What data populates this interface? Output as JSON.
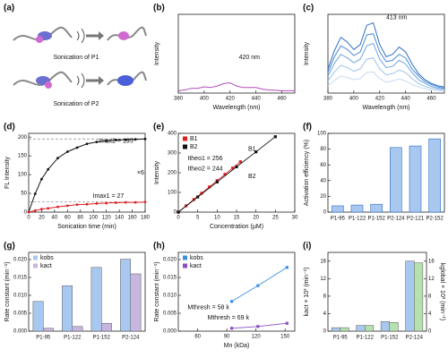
{
  "schematic": {
    "panel_label": "(a)",
    "captions": [
      "Sonication of P1",
      "Sonication of P2"
    ]
  },
  "chart_data": [
    {
      "type": "line",
      "panel_label": "(b)",
      "xlabel": "Wavelength (nm)",
      "ylabel": "Intensity",
      "x": [
        380,
        385,
        390,
        395,
        400,
        405,
        410,
        415,
        420,
        425,
        430,
        435,
        440,
        445,
        450,
        455,
        460,
        465,
        470
      ],
      "xlim": [
        380,
        470
      ],
      "xticks": [
        380,
        400,
        420,
        440,
        460
      ],
      "ylim": [
        0,
        10
      ],
      "series": [
        {
          "color": "#b04ab8",
          "values": [
            0.3,
            0.4,
            0.6,
            0.6,
            0.8,
            0.7,
            0.9,
            1.2,
            1.3,
            0.9,
            0.7,
            0.7,
            0.7,
            0.5,
            0.4,
            0.35,
            0.3,
            0.3,
            0.3
          ]
        }
      ],
      "annotations": [
        "420 nm"
      ]
    },
    {
      "type": "line",
      "panel_label": "(c)",
      "xlabel": "Wavelength (nm)",
      "ylabel": "Intensity",
      "x": [
        380,
        385,
        390,
        395,
        400,
        405,
        410,
        415,
        420,
        425,
        430,
        435,
        440,
        445,
        450,
        455,
        460,
        465,
        470
      ],
      "xlim": [
        380,
        470
      ],
      "xticks": [
        380,
        400,
        420,
        440,
        460
      ],
      "ylim": [
        0,
        6.5
      ],
      "series": [
        {
          "color": "#c7dcf3",
          "values": [
            0.6,
            1.05,
            1.4,
            1.3,
            1.1,
            1.2,
            1.7,
            1.75,
            1.2,
            0.9,
            1.0,
            1.15,
            1.0,
            0.7,
            0.5,
            0.35,
            0.25,
            0.2,
            0.15
          ]
        },
        {
          "color": "#9cc3ec",
          "values": [
            1.0,
            1.75,
            2.3,
            2.1,
            1.8,
            2.0,
            2.8,
            2.9,
            2.0,
            1.5,
            1.6,
            1.9,
            1.7,
            1.2,
            0.8,
            0.55,
            0.4,
            0.3,
            0.25
          ]
        },
        {
          "color": "#6fa6e2",
          "values": [
            1.4,
            2.45,
            3.2,
            2.9,
            2.5,
            2.8,
            3.9,
            4.1,
            2.8,
            2.1,
            2.2,
            2.7,
            2.4,
            1.7,
            1.1,
            0.8,
            0.55,
            0.4,
            0.35
          ]
        },
        {
          "color": "#4a8bd6",
          "values": [
            1.7,
            3.0,
            3.9,
            3.6,
            3.1,
            3.4,
            4.8,
            4.9,
            3.4,
            2.6,
            2.7,
            3.2,
            2.9,
            2.0,
            1.4,
            0.95,
            0.7,
            0.5,
            0.4
          ]
        },
        {
          "color": "#2f6fc2",
          "values": [
            2.0,
            3.5,
            4.6,
            4.2,
            3.6,
            4.0,
            5.6,
            5.8,
            4.0,
            3.0,
            3.2,
            3.8,
            3.4,
            2.4,
            1.6,
            1.1,
            0.8,
            0.6,
            0.5
          ]
        }
      ],
      "annotations": [
        "413 nm"
      ]
    },
    {
      "type": "line",
      "panel_label": "(d)",
      "xlabel": "Sonication time (min)",
      "ylabel": "FL Intensity",
      "x": [
        0,
        10,
        20,
        30,
        45,
        60,
        75,
        90,
        105,
        120,
        135,
        150,
        165,
        180
      ],
      "xlim": [
        0,
        180
      ],
      "xticks": [
        0,
        20,
        40,
        60,
        80,
        100,
        120,
        140,
        160,
        180
      ],
      "ylim": [
        0,
        210
      ],
      "yticks": [
        0,
        50,
        100,
        150,
        200
      ],
      "markers": true,
      "hlines": [
        195,
        27
      ],
      "series": [
        {
          "color": "#111111",
          "values": [
            0,
            49,
            88,
            114,
            144,
            161,
            172,
            182,
            187,
            190,
            192,
            193,
            194,
            195
          ]
        },
        {
          "color": "#e02020",
          "values": [
            0,
            4,
            8,
            10,
            14,
            17,
            20,
            21,
            23,
            24,
            25,
            26,
            26,
            27
          ]
        }
      ],
      "annotations": [
        "Imax2 = 195",
        "Imax1 = 27",
        "×6"
      ]
    },
    {
      "type": "scatter",
      "panel_label": "(e)",
      "xlabel": "Concentration (μM)",
      "ylabel": "Intensity",
      "xlim": [
        0,
        30
      ],
      "xticks": [
        0,
        5,
        10,
        15,
        20,
        25,
        30
      ],
      "ylim": [
        0,
        400
      ],
      "yticks": [
        0,
        100,
        200,
        300,
        400
      ],
      "legend": "upper left",
      "series": [
        {
          "name": "B1",
          "color": "#e02020",
          "x": [
            0,
            2,
            4,
            6,
            8,
            10,
            12,
            14,
            16
          ],
          "values": [
            0,
            32,
            64,
            96,
            128,
            160,
            192,
            224,
            256
          ]
        },
        {
          "name": "B2",
          "color": "#111111",
          "x": [
            0,
            5,
            10,
            15,
            20,
            25
          ],
          "values": [
            0,
            77,
            153,
            230,
            306,
            383
          ]
        }
      ],
      "annotations": [
        "Itheo1 = 256",
        "Itheo2 = 244",
        "B1",
        "B2"
      ]
    },
    {
      "type": "bar",
      "panel_label": "(f)",
      "ylabel": "Activation efficiency (%)",
      "categories": [
        "P1-95",
        "P1-122",
        "P1-152",
        "P2-124",
        "P2-121",
        "P2-152"
      ],
      "values": [
        8,
        9,
        10,
        82,
        84,
        93
      ],
      "color": "#a9c8ef",
      "ylim": [
        0,
        100
      ],
      "yticks": [
        0,
        20,
        40,
        60,
        80,
        100
      ]
    },
    {
      "type": "bar",
      "panel_label": "(g)",
      "ylabel": "Rate constant (min⁻¹)",
      "categories": [
        "P1-95",
        "P1-122",
        "P1-152",
        "P2-124"
      ],
      "ylim": [
        0,
        0.022
      ],
      "yticks": [
        {
          "value": 0,
          "label": "0.000"
        },
        {
          "value": 0.005,
          "label": "0.005"
        },
        {
          "value": 0.01,
          "label": "0.010"
        },
        {
          "value": 0.015,
          "label": "0.015"
        },
        {
          "value": 0.02,
          "label": "0.020"
        }
      ],
      "legend": "upper left",
      "series": [
        {
          "name": "kobs",
          "color": "#a9c8ef",
          "values": [
            0.0083,
            0.0127,
            0.0178,
            0.0201
          ]
        },
        {
          "name": "kact",
          "color": "#c9b6e0",
          "values": [
            0.0008,
            0.0013,
            0.0022,
            0.016
          ]
        }
      ]
    },
    {
      "type": "scatter",
      "panel_label": "(h)",
      "xlabel": "Mn (kDa)",
      "ylabel": "Rate constant (min⁻¹)",
      "xlim": [
        40,
        160
      ],
      "xticks": [
        60,
        90,
        120,
        150
      ],
      "ylim": [
        0,
        0.022
      ],
      "yticks": [
        {
          "value": 0,
          "label": "0.000"
        },
        {
          "value": 0.005,
          "label": "0.005"
        },
        {
          "value": 0.01,
          "label": "0.010"
        },
        {
          "value": 0.015,
          "label": "0.015"
        },
        {
          "value": 0.02,
          "label": "0.020"
        }
      ],
      "legend": "upper left",
      "series": [
        {
          "name": "kobs",
          "color": "#3d8fe0",
          "x": [
            95,
            122,
            152
          ],
          "values": [
            0.0083,
            0.0127,
            0.0178
          ]
        },
        {
          "name": "kact",
          "color": "#8a4fc0",
          "x": [
            95,
            122,
            152
          ],
          "values": [
            0.0008,
            0.0013,
            0.0022
          ]
        }
      ],
      "annotations": [
        "Mthresh = 58 k",
        "Mthresh = 69 k"
      ]
    },
    {
      "type": "bar",
      "panel_label": "(i)",
      "ylabel": "kact × 10³ (min⁻¹)",
      "y2label": "kglobal × 10³ (min⁻¹)",
      "categories": [
        "P1-95",
        "P1-122",
        "P1-152",
        "P2-124"
      ],
      "ylim": [
        0,
        18
      ],
      "yticks": [
        0,
        4,
        8,
        12,
        16
      ],
      "y2lim": [
        0,
        18
      ],
      "y2ticks": [
        0,
        4,
        8,
        12,
        16
      ],
      "series": [
        {
          "color": "#a9c8ef",
          "values": [
            0.8,
            1.3,
            2.2,
            16.0
          ]
        },
        {
          "color": "#b6e0b0",
          "axis": "y2",
          "values": [
            0.8,
            1.3,
            2.0,
            15.6
          ]
        }
      ]
    }
  ]
}
